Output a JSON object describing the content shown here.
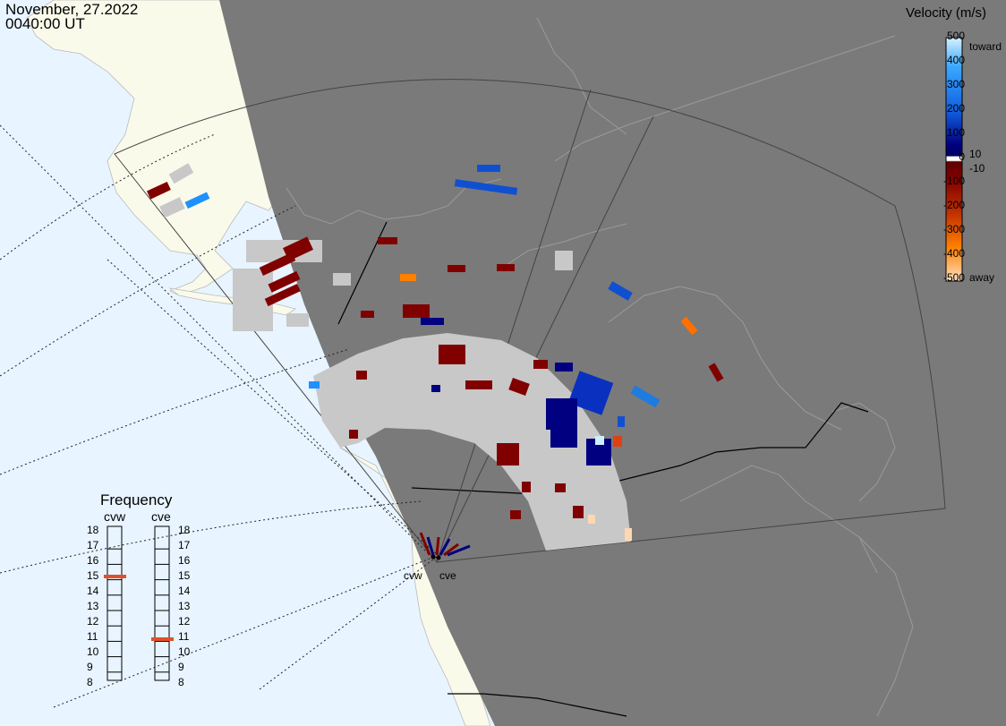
{
  "header": {
    "date": "November, 27.2022",
    "time": "0040:00 UT"
  },
  "velocity_scale": {
    "title": "Velocity (m/s)",
    "labels": [
      "500",
      "400",
      "300",
      "200",
      "100",
      "0",
      "-100",
      "-200",
      "-300",
      "-400",
      "-500"
    ],
    "small_labels": [
      "10",
      "-10"
    ],
    "toward_label": "toward",
    "away_label": "away",
    "colors": {
      "toward_light": "#d0ecff",
      "toward_mid": "#1e90ff",
      "toward_dark": "#000080",
      "away_dark": "#800000",
      "away_mid": "#e05000",
      "away_light": "#ffd8b0",
      "ground_scatter": "#c8c8c8"
    }
  },
  "frequency_panel": {
    "title": "Frequency",
    "radars": [
      {
        "name": "cvw",
        "frequency_mhz": 15
      },
      {
        "name": "cve",
        "frequency_mhz": 11
      }
    ],
    "scale": [
      "18",
      "17",
      "16",
      "15",
      "14",
      "13",
      "12",
      "11",
      "10",
      "9",
      "8"
    ],
    "indicator_color": "#e0502a"
  },
  "sites": [
    "cvw",
    "cve"
  ],
  "map_colors": {
    "ocean": "#e8f4ff",
    "land": "#fafaeb",
    "night": "#7a7a7a",
    "coast": "#999999",
    "border": "#000000"
  }
}
